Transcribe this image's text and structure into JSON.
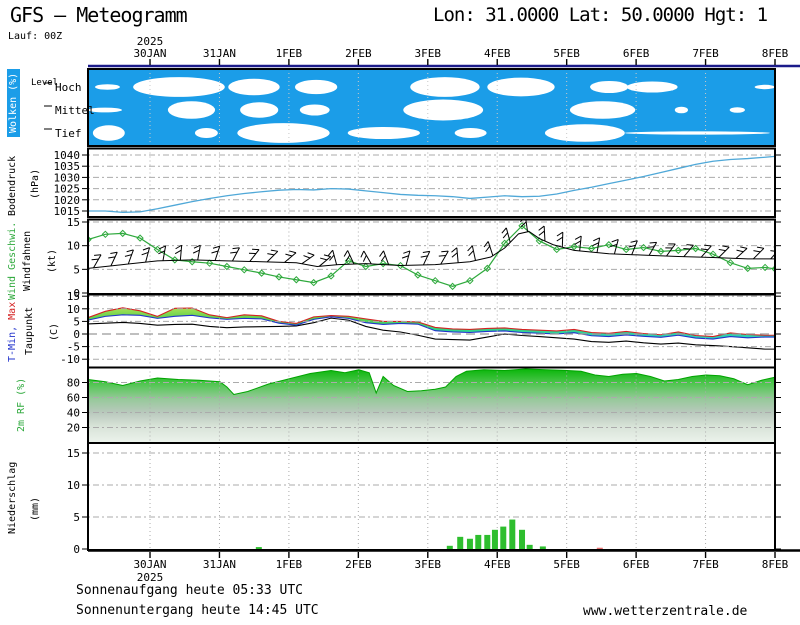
{
  "header": {
    "title": "GFS — Meteogramm",
    "coords": "Lon: 31.0000 Lat: 50.0000 Hgt: 1",
    "run": "Lauf: 00Z"
  },
  "footer": {
    "sunrise": "Sonnenaufgang heute 05:33 UTC",
    "sunset": "Sonnenuntergang heute 14:45 UTC",
    "site": "www.wetterzentrale.de"
  },
  "axis": {
    "year": "2025",
    "dates": [
      "30JAN",
      "31JAN",
      "1FEB",
      "2FEB",
      "3FEB",
      "4FEB",
      "5FEB",
      "6FEB",
      "7FEB",
      "8FEB"
    ]
  },
  "chart_data": {
    "type": "multi-panel-meteogram",
    "time_span_days": 9.89,
    "panels": {
      "clouds": {
        "type": "heatmap",
        "label": "Wolken (%)",
        "axis_label": "Level",
        "levels": [
          "Hoch",
          "Mittel",
          "Tief"
        ],
        "sky_color": "#1B9DE8",
        "cloud_color": "#FFFFFF",
        "blobs": [
          [
            0,
            0.1,
            0.46,
            0.25
          ],
          [
            0,
            0.65,
            1.97,
            0.9
          ],
          [
            0,
            2.02,
            2.76,
            0.75
          ],
          [
            0,
            2.98,
            3.59,
            0.65
          ],
          [
            0,
            4.64,
            5.64,
            0.9
          ],
          [
            0,
            5.75,
            6.72,
            0.85
          ],
          [
            0,
            7.23,
            7.78,
            0.55
          ],
          [
            0,
            7.76,
            8.49,
            0.5
          ],
          [
            0,
            9.6,
            9.89,
            0.2
          ],
          [
            1,
            0.0,
            0.49,
            0.22
          ],
          [
            1,
            1.15,
            1.83,
            0.8
          ],
          [
            1,
            2.19,
            2.74,
            0.7
          ],
          [
            1,
            3.05,
            3.48,
            0.5
          ],
          [
            1,
            4.54,
            5.69,
            0.95
          ],
          [
            1,
            6.94,
            7.88,
            0.8
          ],
          [
            1,
            8.45,
            8.64,
            0.3
          ],
          [
            1,
            9.24,
            9.46,
            0.25
          ],
          [
            2,
            0.07,
            0.53,
            0.7
          ],
          [
            2,
            1.54,
            1.87,
            0.45
          ],
          [
            2,
            2.15,
            3.48,
            0.9
          ],
          [
            2,
            3.74,
            4.78,
            0.55
          ],
          [
            2,
            5.28,
            5.74,
            0.45
          ],
          [
            2,
            6.58,
            7.73,
            0.8
          ],
          [
            2,
            7.73,
            9.82,
            0.15
          ]
        ]
      },
      "pressure": {
        "type": "line",
        "label": "Bodendruck",
        "unit": "(hPa)",
        "color": "#4FA8D8",
        "yticks": [
          1040,
          1035,
          1030,
          1025,
          1020,
          1015
        ],
        "ylim": [
          1013,
          1042
        ],
        "t_step": 0.25,
        "values": [
          1015,
          1015,
          1014.4,
          1014.6,
          1016,
          1017.6,
          1019.2,
          1020.6,
          1021.8,
          1022.8,
          1023.6,
          1024.3,
          1024.6,
          1024.4,
          1025,
          1024.8,
          1024,
          1023.2,
          1022.4,
          1022,
          1021.8,
          1021.4,
          1020.6,
          1021.2,
          1021.8,
          1021.4,
          1021.6,
          1022.6,
          1024.2,
          1025.6,
          1027.2,
          1028.8,
          1030.4,
          1032.2,
          1034,
          1035.8,
          1037.2,
          1038,
          1038.4,
          1039
        ]
      },
      "wind": {
        "type": "line",
        "label": "Wind Geschwi.",
        "label2": "Windfahnen",
        "unit": "(kt)",
        "color": "#2EA93C",
        "yticks": [
          15,
          10,
          5,
          0
        ],
        "ylim": [
          0,
          15.8
        ],
        "t_step": 0.25,
        "speed": [
          11.3,
          12.4,
          12.6,
          11.6,
          9.2,
          7,
          6.6,
          6.3,
          5.6,
          4.9,
          4.2,
          3.4,
          2.8,
          2.2,
          3.6,
          6.8,
          5.6,
          6.2,
          5.8,
          3.8,
          2.6,
          1.4,
          2.6,
          5.2,
          10.5,
          14.2,
          11,
          9.2,
          9.8,
          9.4,
          10.2,
          9.2,
          9.6,
          8.8,
          9,
          9.4,
          8.2,
          6.4,
          5.2,
          5.4
        ],
        "barb_line": [
          [
            0,
            5.2
          ],
          [
            0.5,
            6
          ],
          [
            1,
            6.8
          ],
          [
            1.5,
            7
          ],
          [
            2,
            6.8
          ],
          [
            2.5,
            6.6
          ],
          [
            3,
            6.4
          ],
          [
            3.3,
            5.6
          ],
          [
            3.6,
            6
          ],
          [
            4,
            6.2
          ],
          [
            4.5,
            5.8
          ],
          [
            5,
            6
          ],
          [
            5.5,
            6.6
          ],
          [
            5.8,
            7.6
          ],
          [
            6,
            9.5
          ],
          [
            6.2,
            12.5
          ],
          [
            6.35,
            13
          ],
          [
            6.5,
            11.5
          ],
          [
            6.7,
            10.2
          ],
          [
            7,
            9
          ],
          [
            7.5,
            8.3
          ],
          [
            8,
            8
          ],
          [
            8.5,
            7.7
          ],
          [
            9,
            7.5
          ],
          [
            9.5,
            7.2
          ],
          [
            9.89,
            7.2
          ]
        ],
        "barb_angles": [
          30,
          25,
          20,
          15,
          10,
          5,
          10,
          18,
          28,
          38,
          45,
          50,
          55,
          50,
          -15,
          -25,
          -30,
          -20,
          15,
          25,
          30,
          -5,
          -12,
          -18,
          -15,
          -8,
          -3,
          2,
          6,
          10,
          15,
          22,
          30,
          36,
          40,
          42,
          45,
          48,
          45,
          42
        ]
      },
      "temp": {
        "type": "line",
        "label_min": "T-Min,",
        "label_max": "Max",
        "label_dew": "Taupunkt",
        "unit": "(C)",
        "color_max": "#D42222",
        "color_min": "#2233CC",
        "color_dew": "#000000",
        "yticks": [
          15,
          10,
          5,
          0,
          -5,
          -10
        ],
        "ylim": [
          -13,
          16
        ],
        "t_step": 0.25,
        "tmax": [
          6.5,
          9,
          10.4,
          9.2,
          7,
          10.2,
          10.3,
          7.6,
          6.5,
          7.6,
          7.2,
          5,
          4.2,
          6.8,
          7.3,
          7,
          6,
          5,
          5,
          4.8,
          2.6,
          2,
          1.8,
          2.2,
          2.4,
          1.8,
          1.5,
          1.2,
          1.8,
          0.6,
          0.3,
          1,
          0.2,
          -0.3,
          0.8,
          -0.6,
          -1,
          0.4,
          -0.2,
          -0.5
        ],
        "tmin": [
          5.5,
          7,
          7.6,
          7.4,
          6.2,
          7,
          7.4,
          6.4,
          5.8,
          6.2,
          6,
          4.3,
          3.5,
          5.8,
          6.8,
          6.2,
          4.5,
          3.8,
          4.2,
          3.9,
          1.3,
          0.8,
          0.6,
          1,
          1.2,
          0.6,
          0.3,
          0,
          0.5,
          -0.7,
          -1,
          -0.4,
          -0.9,
          -1.3,
          -0.5,
          -1.6,
          -2,
          -1,
          -1.5,
          -1.2
        ],
        "dew": [
          4,
          4.3,
          4.6,
          4.2,
          3.5,
          3.8,
          3.9,
          3,
          2.5,
          2.8,
          2.9,
          3,
          3.2,
          4.5,
          6.3,
          5.5,
          3,
          1.5,
          0.8,
          -0.5,
          -2,
          -2.2,
          -2.4,
          -1.2,
          0,
          -0.6,
          -1,
          -1.5,
          -2,
          -3,
          -3.3,
          -2.8,
          -3.5,
          -4,
          -3.6,
          -4.3,
          -4.6,
          -5,
          -5.5,
          -6
        ]
      },
      "rh": {
        "type": "area",
        "label": "2m RF (%)",
        "yticks": [
          80,
          60,
          40,
          20
        ],
        "ylim": [
          0,
          100
        ],
        "points": [
          [
            0,
            84
          ],
          [
            0.25,
            81
          ],
          [
            0.5,
            76
          ],
          [
            0.75,
            82
          ],
          [
            1,
            86
          ],
          [
            1.3,
            84
          ],
          [
            1.6,
            83
          ],
          [
            1.9,
            81
          ],
          [
            2,
            74
          ],
          [
            2.1,
            64
          ],
          [
            2.3,
            68
          ],
          [
            2.6,
            78
          ],
          [
            2.9,
            85
          ],
          [
            3.2,
            92
          ],
          [
            3.5,
            96
          ],
          [
            3.7,
            93
          ],
          [
            3.9,
            97
          ],
          [
            4.05,
            93
          ],
          [
            4.15,
            66
          ],
          [
            4.25,
            88
          ],
          [
            4.4,
            76
          ],
          [
            4.6,
            68
          ],
          [
            4.8,
            69
          ],
          [
            5,
            71
          ],
          [
            5.15,
            74
          ],
          [
            5.3,
            88
          ],
          [
            5.45,
            95
          ],
          [
            5.7,
            97
          ],
          [
            6,
            96
          ],
          [
            6.3,
            98
          ],
          [
            6.6,
            97
          ],
          [
            6.9,
            96
          ],
          [
            7.1,
            95
          ],
          [
            7.3,
            90
          ],
          [
            7.5,
            88
          ],
          [
            7.7,
            91
          ],
          [
            7.9,
            92
          ],
          [
            8.1,
            88
          ],
          [
            8.3,
            82
          ],
          [
            8.5,
            84
          ],
          [
            8.7,
            88
          ],
          [
            8.9,
            90
          ],
          [
            9.1,
            89
          ],
          [
            9.3,
            85
          ],
          [
            9.5,
            77
          ],
          [
            9.7,
            83
          ],
          [
            9.89,
            87
          ]
        ]
      },
      "precip": {
        "type": "bar",
        "label": "Niederschlag",
        "unit": "(mm)",
        "color": "#2EBE2E",
        "yticks": [
          15,
          10,
          5,
          0
        ],
        "ylim": [
          0,
          16.5
        ],
        "bars": [
          [
            2.46,
            0.3
          ],
          [
            5.21,
            0.5
          ],
          [
            5.36,
            1.9
          ],
          [
            5.5,
            1.6
          ],
          [
            5.62,
            2.2
          ],
          [
            5.75,
            2.2
          ],
          [
            5.86,
            3
          ],
          [
            5.98,
            3.5
          ],
          [
            6.11,
            4.6
          ],
          [
            6.25,
            3
          ],
          [
            6.36,
            0.65
          ],
          [
            6.55,
            0.4
          ]
        ],
        "special_bars": [
          [
            7.37,
            0.2
          ]
        ],
        "special_color": "#E87070"
      }
    }
  }
}
